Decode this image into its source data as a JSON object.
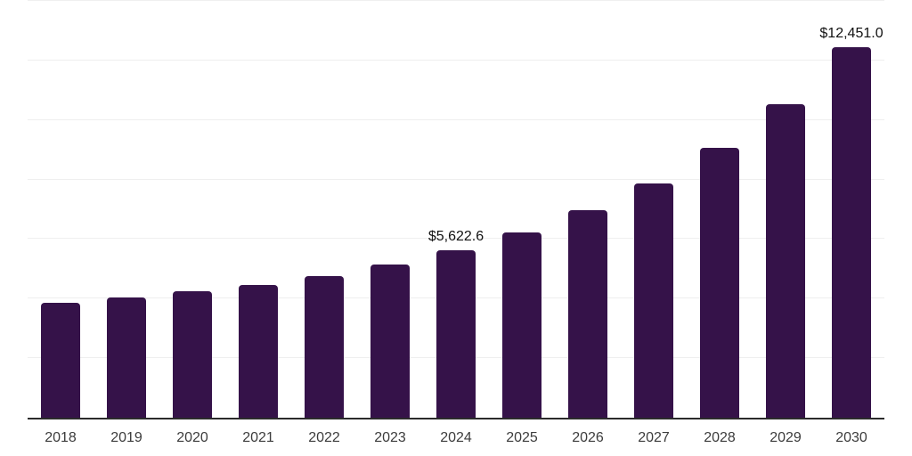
{
  "chart_data": {
    "type": "bar",
    "title": "",
    "categories": [
      "2018",
      "2019",
      "2020",
      "2021",
      "2022",
      "2023",
      "2024",
      "2025",
      "2026",
      "2027",
      "2028",
      "2029",
      "2030"
    ],
    "values": [
      3850,
      4045,
      4240,
      4463,
      4747,
      5150,
      5622.6,
      6224,
      6985,
      7866,
      9060,
      10537,
      12451.0
    ],
    "data_labels": [
      null,
      null,
      null,
      null,
      null,
      null,
      "$5,622.6",
      null,
      null,
      null,
      null,
      null,
      "$12,451.0"
    ],
    "xlabel": "",
    "ylabel": "",
    "ylim": [
      0,
      14000
    ],
    "gridline_step": 2000,
    "grid": true,
    "legend_position": "none",
    "y_tick_labels_visible": false,
    "colors": {
      "bar": "#351249",
      "gridline": "#efefef",
      "axis": "#2b2b2b",
      "tick_label": "#3c3c3c",
      "value_label": "#111111",
      "background": "#ffffff"
    }
  }
}
